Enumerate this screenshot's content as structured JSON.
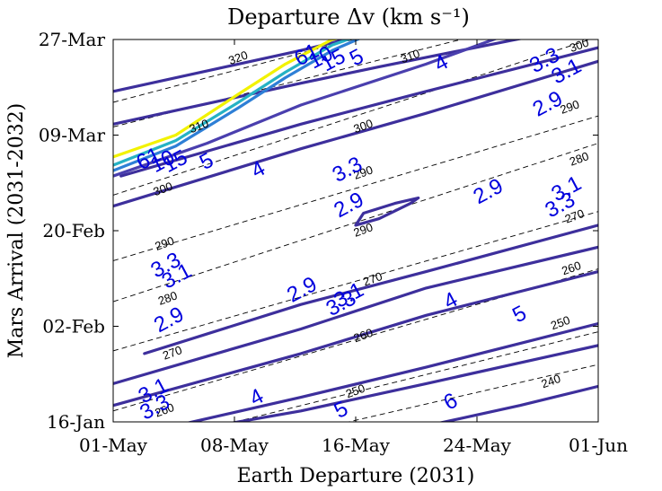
{
  "chart_data": {
    "type": "contour",
    "title": "Departure Δv (km s⁻¹)",
    "xlabel": "Earth Departure (2031)",
    "ylabel": "Mars Arrival (2031-2032)",
    "x_ticks": [
      "01-May",
      "08-May",
      "16-May",
      "24-May",
      "01-Jun"
    ],
    "y_ticks": [
      "16-Jan",
      "02-Feb",
      "20-Feb",
      "09-Mar",
      "27-Mar"
    ],
    "xlim_days": [
      0,
      31
    ],
    "ylim_days": [
      0,
      70
    ],
    "grid": false,
    "dv_contours": [
      {
        "level": "2.9",
        "color": "#3d2f9c",
        "points": [
          [
            0.5,
            45.0
          ],
          [
            12,
            54.5
          ],
          [
            20,
            60.5
          ],
          [
            31,
            68.5
          ]
        ]
      },
      {
        "level": "2.9",
        "color": "#3d2f9c",
        "points": [
          [
            2,
            12.5
          ],
          [
            12,
            21.5
          ],
          [
            20,
            27.5
          ],
          [
            31,
            36.0
          ]
        ]
      },
      {
        "level": "2.9",
        "color": "#3d2f9c",
        "points": [
          [
            15.5,
            36.0
          ],
          [
            17,
            37.2
          ],
          [
            19,
            40.0
          ],
          [
            19.5,
            41.0
          ],
          [
            18,
            40.0
          ],
          [
            16,
            38.2
          ],
          [
            15.5,
            36.0
          ]
        ]
      },
      {
        "level": "3.1",
        "color": "#3d2f9c",
        "points": [
          [
            0,
            54.5
          ],
          [
            12,
            62.0
          ],
          [
            17,
            65.0
          ],
          [
            31,
            73.0
          ]
        ]
      },
      {
        "level": "3.1",
        "color": "#3d2f9c",
        "points": [
          [
            0,
            7.0
          ],
          [
            12,
            17.0
          ],
          [
            20,
            24.5
          ],
          [
            31,
            32.0
          ]
        ]
      },
      {
        "level": "3.3",
        "color": "#3d2f9c",
        "points": [
          [
            0,
            60.5
          ],
          [
            12,
            68.0
          ],
          [
            17,
            71.5
          ],
          [
            31,
            79.0
          ]
        ]
      },
      {
        "level": "3.3",
        "color": "#3d2f9c",
        "points": [
          [
            0,
            3.0
          ],
          [
            12,
            12.5
          ],
          [
            20,
            19.5
          ],
          [
            31,
            27.5
          ]
        ]
      },
      {
        "level": "4",
        "color": "#3d2f9c",
        "points": [
          [
            0,
            39.5
          ],
          [
            12,
            50.0
          ],
          [
            20,
            56.5
          ],
          [
            31,
            66.0
          ]
        ]
      },
      {
        "level": "4",
        "color": "#3d2f9c",
        "points": [
          [
            2,
            -2.0
          ],
          [
            12,
            4.5
          ],
          [
            20,
            10.0
          ],
          [
            31,
            18.0
          ]
        ]
      },
      {
        "level": "5",
        "color": "#3d2f9c",
        "points": [
          [
            4,
            -2.0
          ],
          [
            12,
            2.0
          ],
          [
            20,
            7.0
          ],
          [
            31,
            14.0
          ]
        ]
      },
      {
        "level": "6",
        "color": "#3d2f9c",
        "points": [
          [
            18,
            -2.0
          ],
          [
            26,
            3.0
          ],
          [
            31,
            6.5
          ]
        ]
      },
      {
        "level": "5",
        "color": "#4a3fae",
        "points": [
          [
            0,
            45.0
          ],
          [
            6,
            51.0
          ],
          [
            12,
            58.0
          ],
          [
            20,
            65.5
          ],
          [
            31,
            77.0
          ]
        ]
      },
      {
        "level": "10",
        "color": "#2e7fd6",
        "points": [
          [
            0,
            46.0
          ],
          [
            4,
            50.5
          ],
          [
            8,
            57.5
          ],
          [
            11,
            63.0
          ],
          [
            14,
            68.0
          ],
          [
            16,
            70.5
          ]
        ]
      },
      {
        "level": "15",
        "color": "#26b2c4",
        "points": [
          [
            0,
            47.0
          ],
          [
            4,
            51.5
          ],
          [
            8,
            58.5
          ],
          [
            11,
            64.0
          ],
          [
            14,
            69.0
          ],
          [
            15.5,
            70.5
          ]
        ]
      },
      {
        "level": "61",
        "color": "#f2f200",
        "points": [
          [
            0,
            48.5
          ],
          [
            4,
            52.5
          ],
          [
            8,
            60.0
          ],
          [
            11,
            65.5
          ],
          [
            14,
            70.0
          ],
          [
            14.8,
            70.5
          ]
        ]
      }
    ],
    "tof_lines": [
      {
        "label": "240",
        "values": [
          [
            12,
            -2.0
          ],
          [
            31,
            10.5
          ]
        ]
      },
      {
        "label": "250",
        "values": [
          [
            5,
            -2.0
          ],
          [
            31,
            16.5
          ]
        ]
      },
      {
        "label": "260",
        "values": [
          [
            0,
            2.0
          ],
          [
            31,
            28.0
          ]
        ]
      },
      {
        "label": "270",
        "values": [
          [
            0,
            13.0
          ],
          [
            31,
            38.5
          ]
        ]
      },
      {
        "label": "280",
        "values": [
          [
            0,
            22.0
          ],
          [
            31,
            51.0
          ]
        ]
      },
      {
        "label": "290",
        "values": [
          [
            0,
            29.5
          ],
          [
            31,
            56.0
          ]
        ]
      },
      {
        "label": "300",
        "values": [
          [
            0,
            41.5
          ],
          [
            31,
            70.5
          ]
        ]
      },
      {
        "label": "310",
        "values": [
          [
            0,
            54.0
          ],
          [
            25,
            72.0
          ]
        ]
      },
      {
        "label": "320",
        "values": [
          [
            0,
            58.5
          ],
          [
            18,
            72.0
          ]
        ]
      }
    ],
    "dv_labels": [
      {
        "text": "6",
        "x": 21.6,
        "y": 3.5
      },
      {
        "text": "5",
        "x": 14.6,
        "y": 2.0
      },
      {
        "text": "5",
        "x": 26.0,
        "y": 19.5
      },
      {
        "text": "4",
        "x": 9.2,
        "y": 4.3
      },
      {
        "text": "4",
        "x": 21.6,
        "y": 22.0
      },
      {
        "text": "4",
        "x": 9.3,
        "y": 46.0
      },
      {
        "text": "4",
        "x": 21.0,
        "y": 65.5
      },
      {
        "text": "3.3",
        "x": 2.7,
        "y": 2.5
      },
      {
        "text": "3.1",
        "x": 2.6,
        "y": 5.5
      },
      {
        "text": "2.9",
        "x": 3.6,
        "y": 18.5
      },
      {
        "text": "3.1",
        "x": 4.1,
        "y": 26.5
      },
      {
        "text": "3.3",
        "x": 3.4,
        "y": 28.5
      },
      {
        "text": "2.9",
        "x": 12.1,
        "y": 24.0
      },
      {
        "text": "3.3",
        "x": 14.6,
        "y": 21.5
      },
      {
        "text": "3.1",
        "x": 15.1,
        "y": 23.0
      },
      {
        "text": "2.9",
        "x": 15.1,
        "y": 39.5
      },
      {
        "text": "3.3",
        "x": 15.0,
        "y": 46.0
      },
      {
        "text": "2.9",
        "x": 24.0,
        "y": 42.0
      },
      {
        "text": "3.1",
        "x": 29.0,
        "y": 42.5
      },
      {
        "text": "3.3",
        "x": 28.6,
        "y": 39.5
      },
      {
        "text": "2.9",
        "x": 27.8,
        "y": 58.0
      },
      {
        "text": "3.1",
        "x": 29.0,
        "y": 64.0
      },
      {
        "text": "3.3",
        "x": 27.6,
        "y": 66.0
      },
      {
        "text": "5",
        "x": 6.0,
        "y": 47.5
      },
      {
        "text": "5",
        "x": 15.6,
        "y": 66.5
      },
      {
        "text": "10",
        "x": 3.2,
        "y": 47.5
      },
      {
        "text": "15",
        "x": 4.0,
        "y": 47.5
      },
      {
        "text": "61",
        "x": 2.3,
        "y": 48.0
      },
      {
        "text": "15",
        "x": 14.1,
        "y": 66.0
      },
      {
        "text": "10",
        "x": 13.3,
        "y": 66.5
      },
      {
        "text": "61",
        "x": 12.4,
        "y": 67.0
      }
    ],
    "tof_labels": [
      {
        "text": "320",
        "x": 8.0,
        "y": 66.5
      },
      {
        "text": "310",
        "x": 5.5,
        "y": 54.0
      },
      {
        "text": "310",
        "x": 19.0,
        "y": 66.8
      },
      {
        "text": "300",
        "x": 3.2,
        "y": 42.5
      },
      {
        "text": "300",
        "x": 16.0,
        "y": 54.0
      },
      {
        "text": "300",
        "x": 29.8,
        "y": 68.8
      },
      {
        "text": "290",
        "x": 3.3,
        "y": 32.5
      },
      {
        "text": "290",
        "x": 16.0,
        "y": 45.5
      },
      {
        "text": "290",
        "x": 16.0,
        "y": 35.0
      },
      {
        "text": "290",
        "x": 29.2,
        "y": 57.5
      },
      {
        "text": "280",
        "x": 3.5,
        "y": 22.5
      },
      {
        "text": "280",
        "x": 29.8,
        "y": 48.0
      },
      {
        "text": "270",
        "x": 3.8,
        "y": 12.5
      },
      {
        "text": "270",
        "x": 16.6,
        "y": 26.0
      },
      {
        "text": "270",
        "x": 29.5,
        "y": 37.5
      },
      {
        "text": "260",
        "x": 3.3,
        "y": 2.0
      },
      {
        "text": "260",
        "x": 16.0,
        "y": 15.7
      },
      {
        "text": "260",
        "x": 29.3,
        "y": 28.0
      },
      {
        "text": "250",
        "x": 15.5,
        "y": 5.5
      },
      {
        "text": "250",
        "x": 28.6,
        "y": 18.0
      },
      {
        "text": "240",
        "x": 28.0,
        "y": 7.3
      }
    ]
  }
}
